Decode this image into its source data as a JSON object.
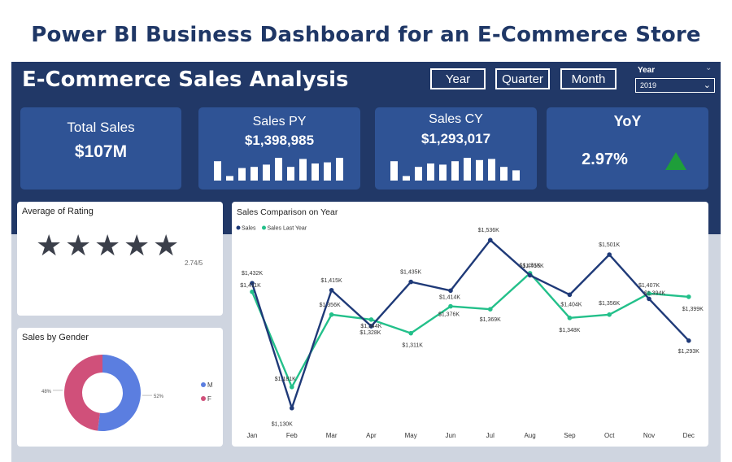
{
  "page_title": "Power BI Business Dashboard for an E-Commerce Store",
  "dashboard": {
    "title": "E-Commerce Sales Analysis",
    "slicers": [
      "Year",
      "Quarter",
      "Month"
    ],
    "year_filter": {
      "label": "Year",
      "selected": "2019"
    }
  },
  "kpis": {
    "total_sales": {
      "label": "Total Sales",
      "value": "$107M"
    },
    "sales_py": {
      "label": "Sales PY",
      "value": "$1,398,985",
      "bar_levels": [
        0.85,
        0.2,
        0.55,
        0.6,
        0.7,
        1.0,
        0.6,
        0.95,
        0.75,
        0.8,
        1.0
      ]
    },
    "sales_cy": {
      "label": "Sales CY",
      "value": "$1,293,017",
      "bar_levels": [
        0.85,
        0.2,
        0.6,
        0.75,
        0.7,
        0.85,
        1.0,
        0.9,
        0.95,
        0.6,
        0.45
      ]
    },
    "yoy": {
      "label": "YoY",
      "value": "2.97%",
      "trend_icon": "up-triangle-icon",
      "trend_color": "#1e9e3a"
    }
  },
  "rating": {
    "title": "Average of Rating",
    "value": 2.74,
    "max": 5,
    "text": "2.74/5",
    "filled_color": "#f3c623",
    "empty_color": "#3b3f4a"
  },
  "gender": {
    "title": "Sales by Gender",
    "legend": [
      {
        "key": "M",
        "color": "#5b7ee0"
      },
      {
        "key": "F",
        "color": "#d0507a"
      }
    ]
  },
  "chart_data": [
    {
      "type": "line",
      "title": "Sales Comparison on Year",
      "categories": [
        "Jan",
        "Feb",
        "Mar",
        "Apr",
        "May",
        "Jun",
        "Jul",
        "Aug",
        "Sep",
        "Oct",
        "Nov",
        "Dec"
      ],
      "series": [
        {
          "name": "Sales",
          "color": "#1f3a78",
          "values": [
            1432,
            1130,
            1415,
            1328,
            1435,
            1414,
            1536,
            1451,
            1404,
            1501,
            1394,
            1293
          ],
          "labels": [
            "$1,432K",
            "$1,130K",
            "$1,415K",
            "$1,328K",
            "$1,435K",
            "$1,414K",
            "$1,536K",
            "$1,451K",
            "$1,404K",
            "$1,501K",
            "$1,394K",
            "$1,293K"
          ]
        },
        {
          "name": "Sales Last Year",
          "color": "#23c08a",
          "values": [
            1411,
            1181,
            1356,
            1344,
            1311,
            1376,
            1369,
            1456,
            1348,
            1356,
            1407,
            1399
          ],
          "labels": [
            "$1,411K",
            "$1,181K",
            "$1,356K",
            "$1,344K",
            "$1,311K",
            "$1,376K",
            "$1,369K",
            "$1,456K",
            "$1,348K",
            "$1,356K",
            "$1,407K",
            "$1,399K"
          ]
        }
      ],
      "legend": "top-left",
      "grid": false
    },
    {
      "type": "pie",
      "title": "Sales by Gender",
      "categories": [
        "M",
        "F"
      ],
      "values": [
        52,
        48
      ],
      "labels": [
        "52%",
        "48%"
      ],
      "colors": [
        "#5b7ee0",
        "#d0507a"
      ]
    }
  ]
}
